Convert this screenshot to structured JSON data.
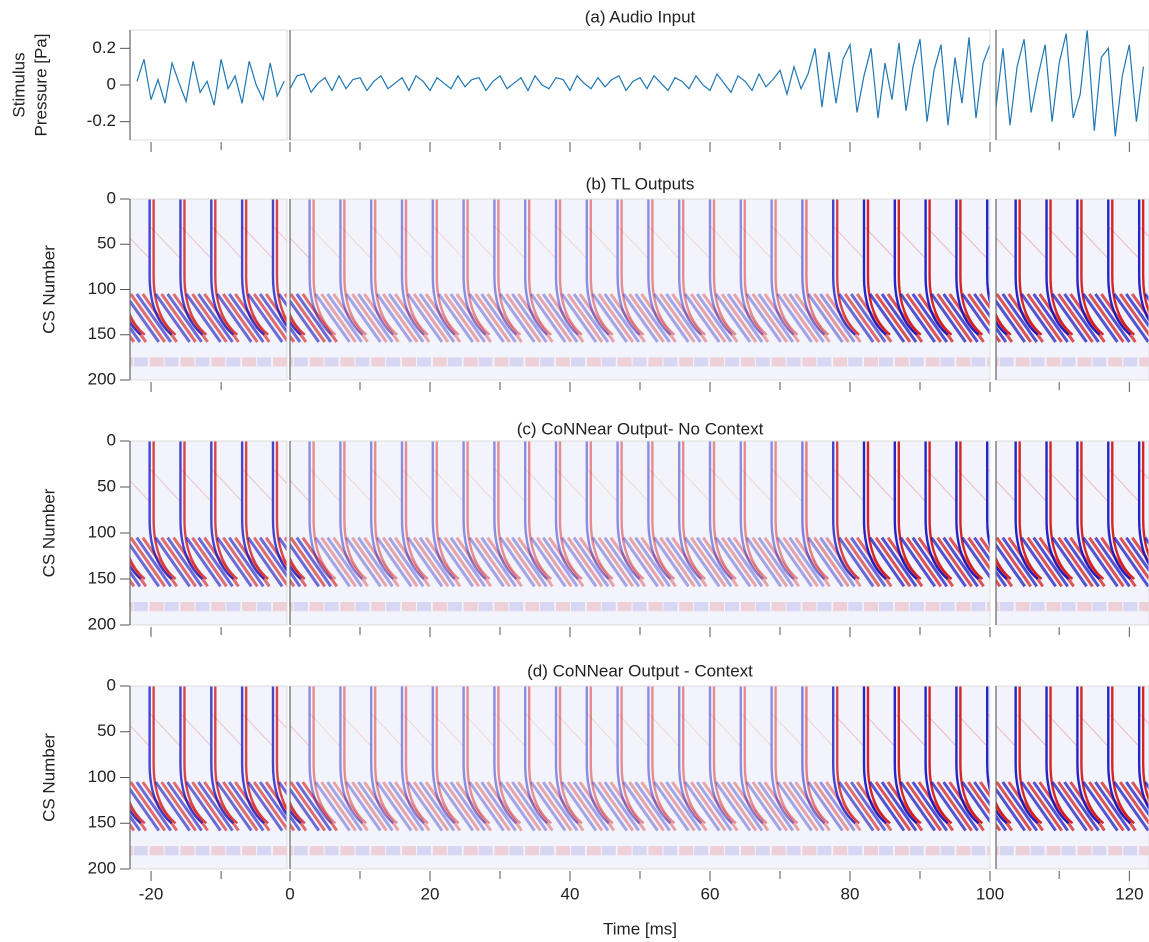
{
  "chart_data": [
    {
      "type": "line",
      "title": "(a) Audio Input",
      "ylabel": [
        "Stimulus",
        "Pressure [Pa]"
      ],
      "color": "#1f77b4",
      "ylim": [
        -0.3,
        0.3
      ],
      "yticks": [
        -0.2,
        0,
        0.2
      ],
      "x": [
        -22,
        -21,
        -20,
        -19,
        -18,
        -17,
        -16,
        -15,
        -14,
        -13,
        -12,
        -11,
        -10,
        -9,
        -8,
        -7,
        -6,
        -5,
        -4,
        -3,
        -2,
        -1,
        0,
        1,
        2,
        3,
        4,
        5,
        6,
        7,
        8,
        9,
        10,
        11,
        12,
        13,
        14,
        15,
        16,
        17,
        18,
        19,
        20,
        21,
        22,
        23,
        24,
        25,
        26,
        27,
        28,
        29,
        30,
        31,
        32,
        33,
        34,
        35,
        36,
        37,
        38,
        39,
        40,
        41,
        42,
        43,
        44,
        45,
        46,
        47,
        48,
        49,
        50,
        51,
        52,
        53,
        54,
        55,
        56,
        57,
        58,
        59,
        60,
        61,
        62,
        63,
        64,
        65,
        66,
        67,
        68,
        69,
        70,
        71,
        72,
        73,
        74,
        75,
        76,
        77,
        78,
        79,
        80,
        81,
        82,
        83,
        84,
        85,
        86,
        87,
        88,
        89,
        90,
        91,
        92,
        93,
        94,
        95,
        96,
        97,
        98,
        99,
        100,
        101,
        102,
        103,
        104,
        105,
        106,
        107,
        108,
        109,
        110,
        111,
        112,
        113,
        114,
        115,
        116,
        117,
        118,
        119,
        120,
        121,
        122
      ],
      "values": [
        0.02,
        0.14,
        -0.08,
        0.03,
        -0.1,
        0.12,
        0.01,
        -0.09,
        0.13,
        -0.04,
        0.02,
        -0.11,
        0.14,
        -0.02,
        0.05,
        -0.1,
        0.13,
        0.0,
        -0.08,
        0.12,
        -0.06,
        0.02,
        -0.02,
        0.05,
        0.06,
        -0.04,
        0.01,
        0.04,
        -0.03,
        0.05,
        -0.02,
        0.03,
        0.04,
        -0.03,
        0.02,
        0.05,
        -0.02,
        0.01,
        0.04,
        -0.03,
        0.05,
        0.02,
        -0.03,
        0.04,
        0.01,
        -0.02,
        0.05,
        -0.01,
        0.03,
        0.04,
        -0.03,
        0.02,
        0.05,
        -0.02,
        0.01,
        0.04,
        -0.03,
        0.05,
        0.0,
        -0.02,
        0.04,
        0.03,
        -0.03,
        0.05,
        0.01,
        -0.02,
        0.04,
        -0.01,
        0.03,
        0.05,
        -0.03,
        0.02,
        0.04,
        -0.02,
        0.05,
        0.01,
        -0.03,
        0.04,
        0.02,
        -0.02,
        0.05,
        0.0,
        -0.03,
        0.06,
        0.01,
        -0.04,
        0.05,
        0.02,
        -0.03,
        0.06,
        -0.01,
        0.03,
        0.08,
        -0.05,
        0.1,
        -0.02,
        0.06,
        0.2,
        -0.12,
        0.18,
        -0.1,
        0.14,
        0.22,
        -0.15,
        0.05,
        0.2,
        -0.18,
        0.12,
        -0.08,
        0.23,
        -0.14,
        0.1,
        0.25,
        -0.2,
        0.08,
        0.22,
        -0.22,
        0.15,
        -0.1,
        0.26,
        -0.18,
        0.12,
        0.22,
        -0.12,
        0.2,
        -0.22,
        0.1,
        0.25,
        -0.15,
        0.05,
        0.22,
        -0.2,
        0.12,
        0.28,
        -0.18,
        -0.05,
        0.3,
        -0.25,
        0.15,
        0.2,
        -0.28,
        0.05,
        0.22,
        -0.2,
        0.1
      ]
    },
    {
      "type": "heatmap",
      "title": "(b) TL Outputs",
      "ylabel": "CS Number",
      "ylim": [
        200,
        0
      ],
      "yticks": [
        0,
        50,
        100,
        150,
        200
      ],
      "colors": [
        "#1010c0",
        "#d01010"
      ]
    },
    {
      "type": "heatmap",
      "title": "(c) CoNNear Output- No Context",
      "ylabel": "CS Number",
      "ylim": [
        200,
        0
      ],
      "yticks": [
        0,
        50,
        100,
        150,
        200
      ],
      "colors": [
        "#1010c0",
        "#d01010"
      ]
    },
    {
      "type": "heatmap",
      "title": "(d) CoNNear Output - Context",
      "ylabel": "CS Number",
      "ylim": [
        200,
        0
      ],
      "yticks": [
        0,
        50,
        100,
        150,
        200
      ],
      "colors": [
        "#1010c0",
        "#d01010"
      ]
    }
  ],
  "x_axis": {
    "label": "Time [ms]",
    "segments": [
      [
        -23,
        -0.6
      ],
      [
        0,
        100
      ],
      [
        101,
        122.8
      ]
    ],
    "ticks": [
      -20,
      0,
      20,
      40,
      60,
      80,
      100,
      120
    ],
    "minor_ticks": [
      -10,
      10,
      30,
      50,
      70,
      90,
      110
    ]
  }
}
